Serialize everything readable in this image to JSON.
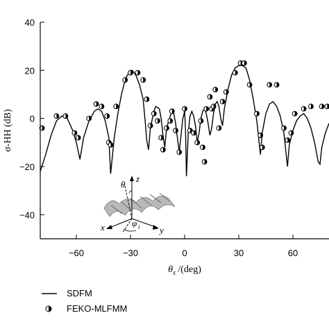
{
  "chart_data": {
    "type": "line",
    "xlabel_symbol": "θ",
    "xlabel_sub": "s",
    "xlabel_unit": " /(deg)",
    "ylabel": "σ-HH (dB)",
    "xlim": [
      -80,
      80
    ],
    "ylim": [
      -50,
      40
    ],
    "x_ticks": [
      -60,
      -30,
      0,
      30,
      60
    ],
    "y_ticks": [
      -40,
      -20,
      0,
      20,
      40
    ],
    "grid": false,
    "legend_position": "bottom-left",
    "series": [
      {
        "name": "SDFM",
        "style": "line",
        "color": "#000000",
        "points": [
          [
            -80,
            -22
          ],
          [
            -77,
            -15
          ],
          [
            -74,
            -7
          ],
          [
            -71,
            -1
          ],
          [
            -68,
            1
          ],
          [
            -65,
            0
          ],
          [
            -62,
            -5
          ],
          [
            -60,
            -10
          ],
          [
            -58,
            -17
          ],
          [
            -56,
            -8
          ],
          [
            -53,
            -1
          ],
          [
            -50,
            3
          ],
          [
            -48,
            4
          ],
          [
            -46,
            3
          ],
          [
            -44,
            -1
          ],
          [
            -42,
            -8
          ],
          [
            -41,
            -23
          ],
          [
            -39,
            -8
          ],
          [
            -37,
            2
          ],
          [
            -35,
            10
          ],
          [
            -33,
            16
          ],
          [
            -31,
            19
          ],
          [
            -29,
            20
          ],
          [
            -27,
            18
          ],
          [
            -25,
            14
          ],
          [
            -23,
            8
          ],
          [
            -22,
            0
          ],
          [
            -21,
            -9
          ],
          [
            -20,
            -13
          ],
          [
            -19,
            -4
          ],
          [
            -17,
            3
          ],
          [
            -16,
            5
          ],
          [
            -14,
            4
          ],
          [
            -13,
            0
          ],
          [
            -12,
            -7
          ],
          [
            -11,
            -12
          ],
          [
            -10,
            -4
          ],
          [
            -8,
            1
          ],
          [
            -7,
            3
          ],
          [
            -6,
            2
          ],
          [
            -5,
            -2
          ],
          [
            -4,
            -8
          ],
          [
            -3,
            -14
          ],
          [
            -2,
            -7
          ],
          [
            -1,
            0
          ],
          [
            0,
            3
          ],
          [
            0.5,
            -5
          ],
          [
            1,
            -24
          ],
          [
            2,
            -6
          ],
          [
            3,
            1
          ],
          [
            4,
            3
          ],
          [
            5,
            1
          ],
          [
            6,
            -3
          ],
          [
            7,
            -10
          ],
          [
            8,
            -6
          ],
          [
            9,
            0
          ],
          [
            10,
            3
          ],
          [
            11,
            4
          ],
          [
            12,
            2
          ],
          [
            13,
            -2
          ],
          [
            14,
            -7
          ],
          [
            15,
            -4
          ],
          [
            16,
            2
          ],
          [
            17,
            6
          ],
          [
            18,
            7
          ],
          [
            19,
            5
          ],
          [
            20,
            0
          ],
          [
            21,
            -3
          ],
          [
            22,
            4
          ],
          [
            24,
            12
          ],
          [
            26,
            18
          ],
          [
            28,
            21
          ],
          [
            30,
            22
          ],
          [
            32,
            22
          ],
          [
            34,
            21
          ],
          [
            36,
            16
          ],
          [
            38,
            8
          ],
          [
            40,
            -1
          ],
          [
            41,
            -8
          ],
          [
            42,
            -15
          ],
          [
            43,
            -6
          ],
          [
            45,
            2
          ],
          [
            47,
            6
          ],
          [
            49,
            7
          ],
          [
            51,
            5
          ],
          [
            53,
            1
          ],
          [
            55,
            -6
          ],
          [
            56,
            -13
          ],
          [
            57,
            -20
          ],
          [
            58,
            -11
          ],
          [
            60,
            -5
          ],
          [
            62,
            -1
          ],
          [
            64,
            1
          ],
          [
            66,
            2
          ],
          [
            68,
            0
          ],
          [
            70,
            -4
          ],
          [
            72,
            -10
          ],
          [
            74,
            -18
          ],
          [
            75,
            -19
          ],
          [
            76,
            -12
          ],
          [
            78,
            -6
          ],
          [
            80,
            -2
          ]
        ]
      },
      {
        "name": "FEKO-MLFMM",
        "style": "markers",
        "color": "#000000",
        "points": [
          [
            -79,
            -4
          ],
          [
            -71,
            1
          ],
          [
            -66,
            1
          ],
          [
            -61,
            -6
          ],
          [
            -59,
            -8
          ],
          [
            -53,
            0
          ],
          [
            -49,
            6
          ],
          [
            -46,
            5
          ],
          [
            -43,
            1
          ],
          [
            -42,
            -10
          ],
          [
            -41,
            -11
          ],
          [
            -38,
            5
          ],
          [
            -33,
            16
          ],
          [
            -30,
            19
          ],
          [
            -26,
            19
          ],
          [
            -23,
            16
          ],
          [
            -21,
            8
          ],
          [
            -19,
            -3
          ],
          [
            -17,
            2
          ],
          [
            -15,
            -1
          ],
          [
            -13,
            -8
          ],
          [
            -12,
            -13
          ],
          [
            -10,
            -4
          ],
          [
            -8,
            -1
          ],
          [
            -7,
            3
          ],
          [
            -5,
            -5
          ],
          [
            -3,
            -14
          ],
          [
            0,
            4
          ],
          [
            3,
            -5
          ],
          [
            5,
            -6
          ],
          [
            7,
            -10
          ],
          [
            9,
            -1
          ],
          [
            10,
            -12
          ],
          [
            11,
            -18
          ],
          [
            12,
            4
          ],
          [
            14,
            9
          ],
          [
            15,
            4
          ],
          [
            16,
            5
          ],
          [
            17,
            12
          ],
          [
            19,
            -4
          ],
          [
            21,
            7
          ],
          [
            23,
            11
          ],
          [
            28,
            19
          ],
          [
            31,
            23
          ],
          [
            33,
            23
          ],
          [
            36,
            14
          ],
          [
            40,
            2
          ],
          [
            42,
            -7
          ],
          [
            43,
            -12
          ],
          [
            47,
            14
          ],
          [
            51,
            14
          ],
          [
            55,
            -4
          ],
          [
            57,
            -9
          ],
          [
            59,
            -6
          ],
          [
            61,
            2
          ],
          [
            66,
            4
          ],
          [
            70,
            5
          ],
          [
            76,
            5
          ],
          [
            79,
            5
          ]
        ]
      }
    ]
  },
  "inset": {
    "labels": [
      "θ",
      "z",
      "x",
      "y",
      "φ",
      "i"
    ]
  },
  "legend": {
    "line_label": "SDFM",
    "marker_label": "FEKO-MLFMM"
  }
}
